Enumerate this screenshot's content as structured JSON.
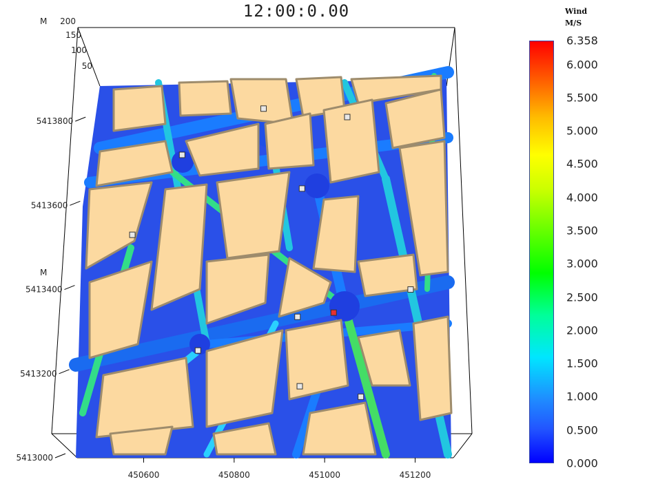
{
  "title": "12:00:0.00",
  "legend": {
    "title_line1": "Wind",
    "title_line2": "M/S",
    "max_label": "6.358",
    "ticks": [
      "6.000",
      "5.500",
      "5.000",
      "4.500",
      "4.000",
      "3.500",
      "3.000",
      "2.500",
      "2.000",
      "1.500",
      "1.000",
      "0.500",
      "0.000"
    ],
    "max": 6.358,
    "min": 0.0
  },
  "chart_data": {
    "type": "heatmap",
    "title": "12:00:0.00",
    "xlabel": "",
    "ylabel": "M",
    "zlabel": "M",
    "x_ticks": [
      "450600",
      "450800",
      "451000",
      "451200"
    ],
    "y_ticks": [
      "5413000",
      "5413200",
      "5413400",
      "5413600",
      "5413800"
    ],
    "z_ticks": [
      "200",
      "150",
      "100",
      "50"
    ],
    "xlim": [
      450450,
      451280
    ],
    "ylim": [
      5413000,
      5413900
    ],
    "colorbar": {
      "label": "Wind M/S",
      "range": [
        0.0,
        6.358
      ]
    },
    "sensors": [
      {
        "x": 450685,
        "y": 5413720
      },
      {
        "x": 450865,
        "y": 5413830
      },
      {
        "x": 451050,
        "y": 5413810
      },
      {
        "x": 450950,
        "y": 5413640
      },
      {
        "x": 450575,
        "y": 5413530
      },
      {
        "x": 451190,
        "y": 5413400
      },
      {
        "x": 451020,
        "y": 5413345
      },
      {
        "x": 450940,
        "y": 5413335
      },
      {
        "x": 450720,
        "y": 5413255
      },
      {
        "x": 450945,
        "y": 5413170
      },
      {
        "x": 451080,
        "y": 5413145
      }
    ]
  }
}
